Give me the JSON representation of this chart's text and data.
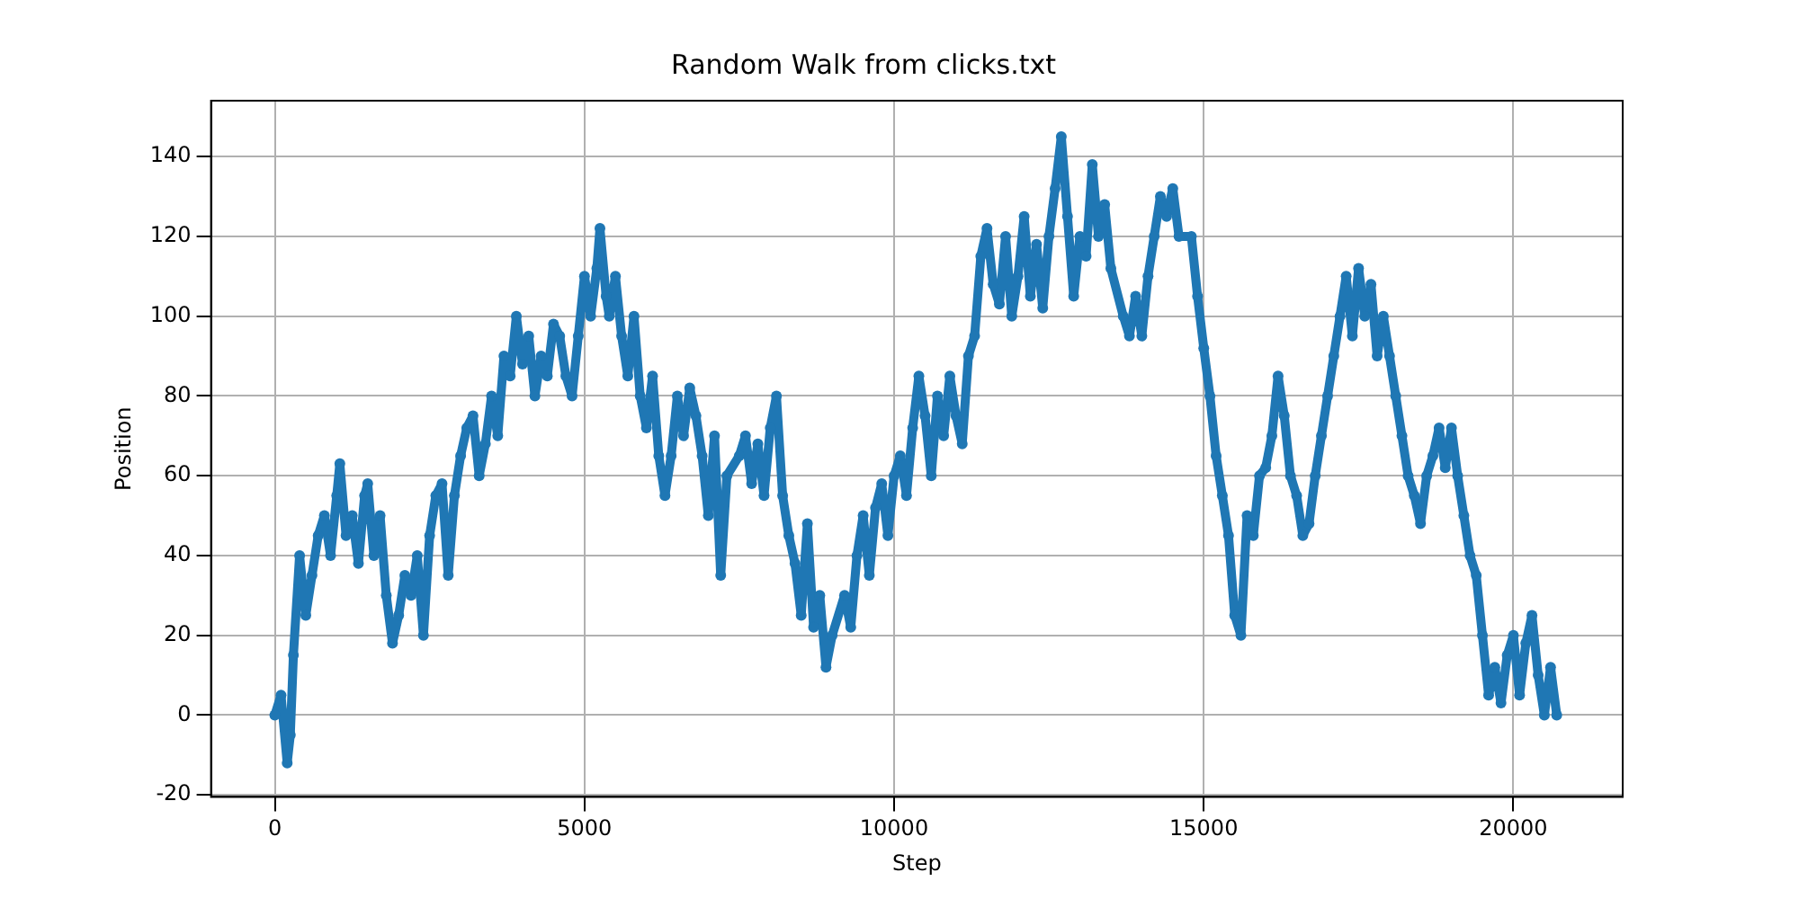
{
  "chart_data": {
    "type": "line",
    "title": "Random Walk from clicks.txt",
    "xlabel": "Step",
    "ylabel": "Position",
    "xlim": [
      -1030,
      21765
    ],
    "xticks": [
      0,
      5000,
      10000,
      15000,
      20000
    ],
    "ylim": [
      -20.5,
      154
    ],
    "yticks": [
      -20,
      0,
      20,
      40,
      60,
      80,
      100,
      120,
      140
    ],
    "grid": true,
    "marker": "circle",
    "line_style": "solid",
    "x": [
      0,
      100,
      200,
      250,
      300,
      400,
      500,
      600,
      700,
      800,
      900,
      1000,
      1050,
      1150,
      1250,
      1350,
      1450,
      1500,
      1600,
      1700,
      1800,
      1900,
      2000,
      2100,
      2200,
      2300,
      2400,
      2500,
      2600,
      2700,
      2800,
      2900,
      3000,
      3100,
      3200,
      3300,
      3400,
      3500,
      3600,
      3700,
      3800,
      3900,
      4000,
      4100,
      4200,
      4300,
      4400,
      4500,
      4600,
      4700,
      4800,
      4900,
      5000,
      5100,
      5200,
      5250,
      5350,
      5400,
      5500,
      5600,
      5700,
      5800,
      5900,
      6000,
      6100,
      6200,
      6300,
      6400,
      6500,
      6600,
      6700,
      6800,
      6900,
      7000,
      7100,
      7200,
      7300,
      7500,
      7600,
      7700,
      7800,
      7900,
      8000,
      8100,
      8200,
      8300,
      8400,
      8500,
      8600,
      8700,
      8800,
      8900,
      9000,
      9200,
      9300,
      9400,
      9500,
      9600,
      9700,
      9800,
      9900,
      10000,
      10100,
      10200,
      10300,
      10400,
      10500,
      10600,
      10700,
      10800,
      10900,
      11000,
      11100,
      11200,
      11300,
      11400,
      11500,
      11600,
      11700,
      11800,
      11900,
      12000,
      12100,
      12200,
      12300,
      12400,
      12500,
      12600,
      12700,
      12800,
      12900,
      13000,
      13100,
      13200,
      13300,
      13400,
      13500,
      13700,
      13800,
      13900,
      14000,
      14100,
      14200,
      14300,
      14400,
      14500,
      14600,
      14800,
      14900,
      15000,
      15100,
      15200,
      15300,
      15400,
      15500,
      15600,
      15700,
      15800,
      15900,
      16000,
      16100,
      16200,
      16300,
      16400,
      16500,
      16600,
      16700,
      16800,
      16900,
      17000,
      17100,
      17200,
      17300,
      17400,
      17500,
      17600,
      17700,
      17800,
      17900,
      18000,
      18100,
      18200,
      18300,
      18400,
      18500,
      18600,
      18700,
      18800,
      18900,
      19000,
      19100,
      19200,
      19300,
      19400,
      19500,
      19600,
      19700,
      19800,
      19900,
      20000,
      20100,
      20200,
      20300,
      20400,
      20500,
      20600,
      20700
    ],
    "series": [
      {
        "color": "#1f77b4",
        "values": [
          0,
          5,
          -12,
          -5,
          15,
          40,
          25,
          35,
          45,
          50,
          40,
          55,
          63,
          45,
          50,
          38,
          55,
          58,
          40,
          50,
          30,
          18,
          25,
          35,
          30,
          40,
          20,
          45,
          55,
          58,
          35,
          55,
          65,
          72,
          75,
          60,
          68,
          80,
          70,
          90,
          85,
          100,
          88,
          95,
          80,
          90,
          85,
          98,
          95,
          85,
          80,
          95,
          110,
          100,
          112,
          122,
          105,
          100,
          110,
          95,
          85,
          100,
          80,
          72,
          85,
          65,
          55,
          65,
          80,
          70,
          82,
          75,
          65,
          50,
          70,
          35,
          60,
          65,
          70,
          58,
          68,
          55,
          72,
          80,
          55,
          45,
          38,
          25,
          48,
          22,
          30,
          12,
          20,
          30,
          22,
          40,
          50,
          35,
          52,
          58,
          45,
          60,
          65,
          55,
          72,
          85,
          75,
          60,
          80,
          70,
          85,
          75,
          68,
          90,
          95,
          115,
          122,
          108,
          103,
          120,
          100,
          110,
          125,
          105,
          118,
          102,
          120,
          132,
          145,
          125,
          105,
          120,
          115,
          138,
          120,
          128,
          112,
          100,
          95,
          105,
          95,
          110,
          120,
          130,
          125,
          132,
          120,
          120,
          105,
          92,
          80,
          65,
          55,
          45,
          25,
          20,
          50,
          45,
          60,
          62,
          70,
          85,
          75,
          60,
          55,
          45,
          48,
          60,
          70,
          80,
          90,
          100,
          110,
          95,
          112,
          100,
          108,
          90,
          100,
          90,
          80,
          70,
          60,
          55,
          48,
          60,
          65,
          72,
          62,
          72,
          60,
          50,
          40,
          35,
          20,
          5,
          12,
          3,
          15,
          20,
          5,
          18,
          25,
          10,
          0,
          12,
          0
        ]
      }
    ]
  }
}
